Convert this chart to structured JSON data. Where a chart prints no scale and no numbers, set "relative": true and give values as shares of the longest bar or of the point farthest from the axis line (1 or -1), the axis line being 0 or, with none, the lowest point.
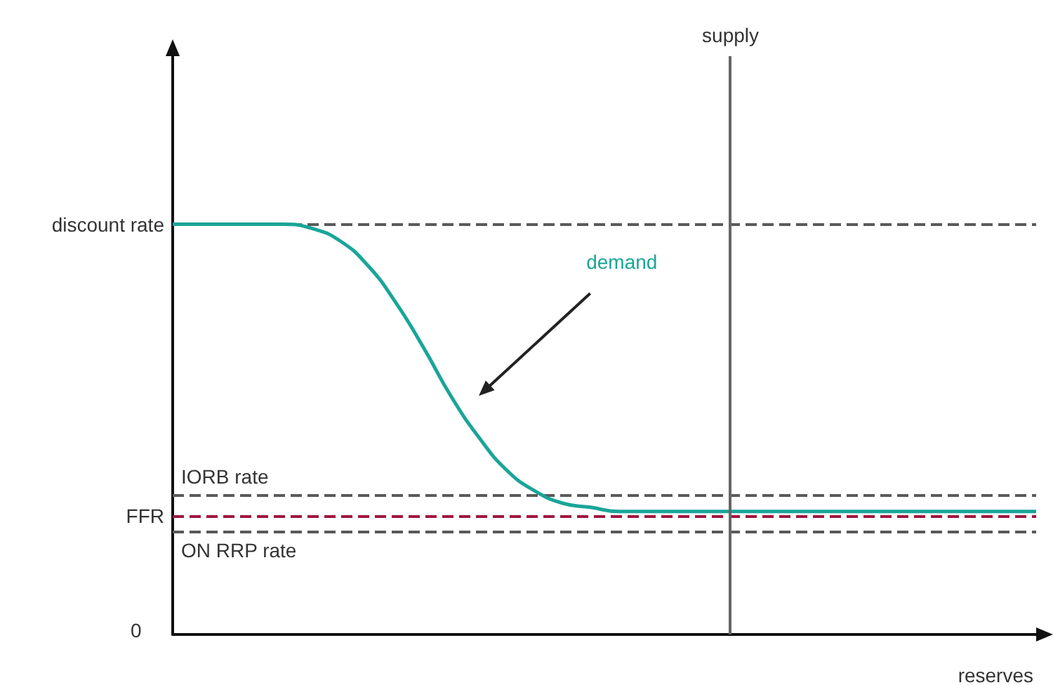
{
  "chart_data": {
    "type": "line",
    "relative": true,
    "xlabel": "reserves",
    "legend": false,
    "grid": false,
    "marker": "none",
    "categories": [
      null,
      null,
      null,
      null,
      null,
      null,
      null,
      null,
      null,
      null,
      null,
      null,
      null,
      null,
      null,
      null,
      null,
      null,
      null,
      null,
      null,
      null,
      null,
      null,
      null,
      null,
      null,
      null,
      null,
      null,
      null,
      null
    ],
    "series": [
      {
        "name": "demand",
        "color": "#1aa599",
        "values": [
          1,
          1,
          1,
          1,
          1,
          0.99,
          0.96,
          0.9,
          0.81,
          0.7,
          0.58,
          0.48,
          0.4,
          0.35,
          0.32,
          0.31,
          0.3,
          0.3,
          0.3,
          0.3,
          0.3,
          0.3,
          0.3,
          0.3,
          0.3,
          0.3,
          0.3,
          0.3,
          0.3,
          0.3,
          0.3,
          0.3
        ]
      }
    ],
    "ref_lines": [
      {
        "axis": "y",
        "value": 1,
        "label": "discount rate",
        "color": "#5a5a5a",
        "line_style": "dashed"
      },
      {
        "axis": "y",
        "value": 0.34,
        "label": "IORB rate",
        "color": "#5a5a5a",
        "line_style": "dashed"
      },
      {
        "axis": "y",
        "value": 0.29,
        "label": "FFR",
        "color": "#a0173e",
        "line_style": "dashed"
      },
      {
        "axis": "y",
        "value": 0.25,
        "label": "ON RRP rate",
        "color": "#5a5a5a",
        "line_style": "dashed"
      }
    ],
    "annotations": [
      "0",
      "supply"
    ]
  }
}
